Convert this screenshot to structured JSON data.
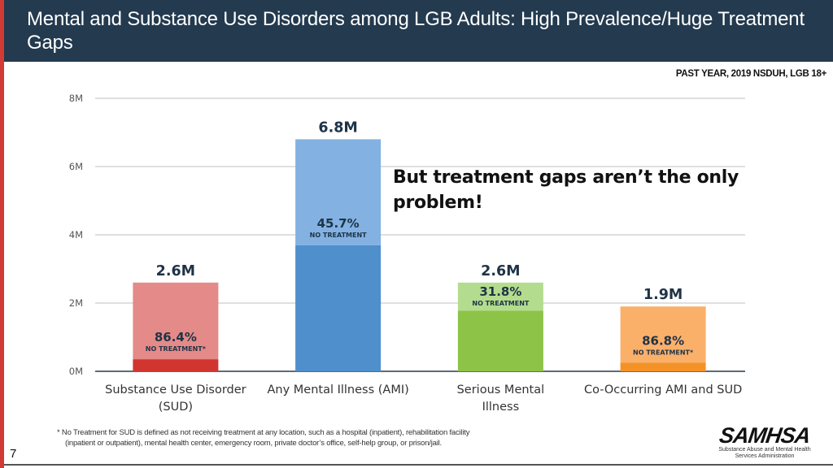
{
  "header": {
    "title": "Mental and Substance Use Disorders among LGB Adults: High Prevalence/Huge Treatment Gaps"
  },
  "source_note": "PAST YEAR, 2019 NSDUH, LGB 18+",
  "callout": "But treatment gaps aren’t the only problem!",
  "footnote": {
    "line1": "* No Treatment for SUD is defined as not receiving treatment at any location, such as a hospital (inpatient), rehabilitation facility",
    "line2": "(inpatient or outpatient), mental health center, emergency room, private doctor’s office, self-help group, or prison/jail."
  },
  "page_number": "7",
  "logo": {
    "name": "SAMHSA",
    "subtitle_line1": "Substance Abuse and Mental Health",
    "subtitle_line2": "Services Administration"
  },
  "chart_data": {
    "type": "bar",
    "title": "",
    "xlabel": "",
    "ylabel": "",
    "ylim": [
      0,
      8
    ],
    "y_unit": "M",
    "y_ticks": [
      "0M",
      "2M",
      "4M",
      "6M",
      "8M"
    ],
    "grid": true,
    "categories": [
      "Substance Use Disorder (SUD)",
      "Any Mental Illness (AMI)",
      "Serious Mental Illness",
      "Co-Occurring AMI and SUD"
    ],
    "category_label_lines": [
      [
        "Substance Use Disorder",
        "(SUD)"
      ],
      [
        "Any Mental Illness (AMI)"
      ],
      [
        "Serious Mental",
        "Illness"
      ],
      [
        "Co-Occurring AMI and SUD"
      ]
    ],
    "values": [
      2.6,
      6.8,
      2.6,
      1.9
    ],
    "value_labels": [
      "2.6M",
      "6.8M",
      "2.6M",
      "1.9M"
    ],
    "no_treatment_percent": [
      86.4,
      45.7,
      31.8,
      86.8
    ],
    "no_treatment_labels": [
      "86.4%",
      "45.7%",
      "31.8%",
      "86.8%"
    ],
    "no_treatment_captions": [
      "NO TREATMENT*",
      "NO TREATMENT",
      "NO TREATMENT",
      "NO TREATMENT*"
    ],
    "colors": {
      "no_treatment": [
        "#e48a88",
        "#83b2e2",
        "#b4dc8e",
        "#fbb06a"
      ],
      "treated": [
        "#d1352f",
        "#4f8fcc",
        "#8dc347",
        "#f39327"
      ],
      "text": "#1f3347",
      "grid": "#bfbfbf",
      "axis": "#2b3a47"
    }
  }
}
